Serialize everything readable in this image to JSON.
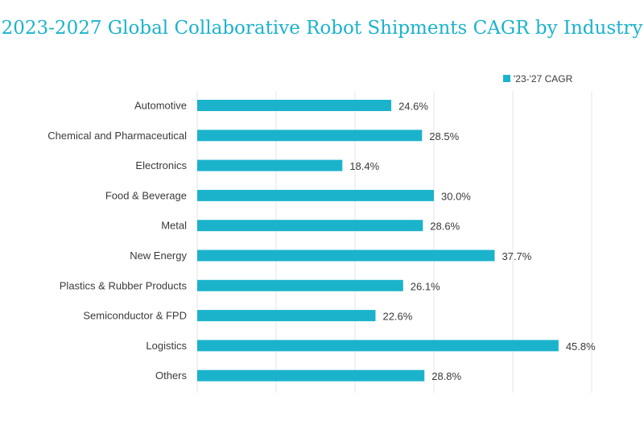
{
  "chart_data": {
    "type": "bar",
    "orientation": "horizontal",
    "title": "2023-2027 Global Collaborative Robot Shipments CAGR by Industry",
    "categories": [
      "Automotive",
      "Chemical and Pharmaceutical",
      "Electronics",
      "Food & Beverage",
      "Metal",
      "New Energy",
      "Plastics & Rubber Products",
      "Semiconductor & FPD",
      "Logistics",
      "Others"
    ],
    "series": [
      {
        "name": "'23-'27 CAGR",
        "values": [
          24.6,
          28.5,
          18.4,
          30.0,
          28.6,
          37.7,
          26.1,
          22.6,
          45.8,
          28.8
        ],
        "labels": [
          "24.6%",
          "28.5%",
          "18.4%",
          "30.0%",
          "28.6%",
          "37.7%",
          "26.1%",
          "22.6%",
          "45.8%",
          "28.8%"
        ],
        "color": "#1bb3cc"
      }
    ],
    "xlim": [
      0,
      50
    ],
    "grid": "vertical",
    "legend_position": "top-right",
    "title_color": "#1bb3cc",
    "grid_color": "#e6e6e6"
  }
}
